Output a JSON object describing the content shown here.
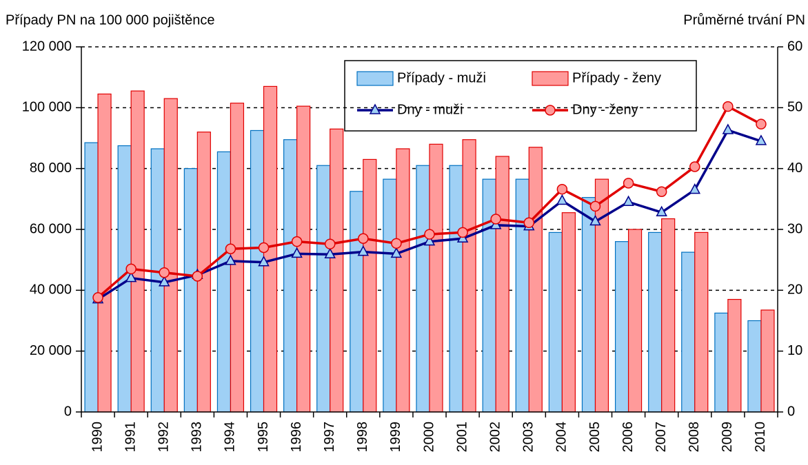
{
  "chart_data": {
    "type": "bar-line",
    "ylabel": "Případy PN na 100 000 pojištěnce",
    "y2label": "Průměrné trvání PN",
    "categories": [
      "1990",
      "1991",
      "1992",
      "1993",
      "1994",
      "1995",
      "1996",
      "1997",
      "1998",
      "1999",
      "2000",
      "2001",
      "2002",
      "2003",
      "2004",
      "2005",
      "2006",
      "2007",
      "2008",
      "2009",
      "2010"
    ],
    "ylim": [
      0,
      120000
    ],
    "yticks": [
      0,
      {
        "value": 20000,
        "label": "20 000"
      },
      {
        "value": 40000,
        "label": "40 000"
      },
      {
        "value": 60000,
        "label": "60 000"
      },
      {
        "value": 80000,
        "label": "80 000"
      },
      {
        "value": 100000,
        "label": "100 000"
      },
      {
        "value": 120000,
        "label": "120 000"
      }
    ],
    "y2lim": [
      0,
      60
    ],
    "y2ticks": [
      0,
      10,
      20,
      30,
      40,
      50,
      60
    ],
    "grid": true,
    "legend": "top-right",
    "series": [
      {
        "name": "Případy - muži",
        "type": "bar",
        "color": "#9fd0f5",
        "values": [
          88500,
          87500,
          86500,
          80000,
          85500,
          92500,
          89500,
          81000,
          72500,
          76500,
          81000,
          81000,
          76500,
          76500,
          59000,
          70500,
          56000,
          59000,
          52500,
          32500,
          30000
        ]
      },
      {
        "name": "Případy - ženy",
        "type": "bar",
        "color": "#ff9a9a",
        "values": [
          104500,
          105500,
          103000,
          92000,
          101500,
          107000,
          100500,
          93000,
          83000,
          86500,
          88000,
          89500,
          84000,
          87000,
          65500,
          76500,
          60000,
          63500,
          59000,
          37000,
          33500
        ]
      },
      {
        "name": "Dny - muži",
        "type": "line",
        "axis": "y2",
        "color": "#00008b",
        "values": [
          18.5,
          22,
          21.3,
          22.5,
          24.8,
          24.6,
          26,
          25.9,
          26.3,
          26,
          28,
          28.5,
          30.7,
          30.5,
          34.7,
          31.3,
          34.5,
          32.8,
          36.5,
          46.3,
          44.5
        ]
      },
      {
        "name": "Dny - ženy",
        "type": "line",
        "axis": "y2",
        "color": "#e00000",
        "values": [
          18.8,
          23.5,
          22.9,
          22.3,
          26.8,
          27,
          28,
          27.6,
          28.5,
          27.7,
          29.2,
          29.5,
          31.7,
          31.1,
          36.6,
          33.8,
          37.6,
          36.2,
          40.3,
          50.2,
          47.3
        ]
      }
    ]
  }
}
